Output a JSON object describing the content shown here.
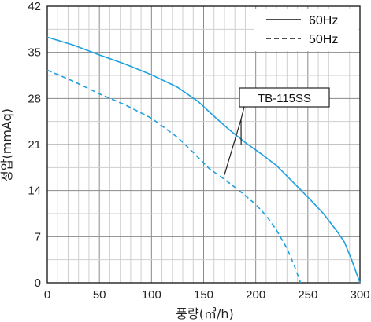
{
  "chart_data": {
    "type": "line",
    "xlabel": "풍량(㎥/h)",
    "ylabel": "정압(mmAq)",
    "xlim": [
      0,
      300
    ],
    "ylim": [
      0,
      42
    ],
    "x_ticks": [
      "0",
      "50",
      "100",
      "150",
      "200",
      "250",
      "300"
    ],
    "y_ticks": [
      "0",
      "7",
      "14",
      "21",
      "28",
      "35",
      "42"
    ],
    "x_tick_values": [
      0,
      50,
      100,
      150,
      200,
      250,
      300
    ],
    "y_tick_values": [
      0,
      7,
      14,
      21,
      28,
      35,
      42
    ],
    "x_minor_step": 10,
    "y_minor_step": 3.5,
    "grid": true,
    "legend_position": "top-right",
    "series": [
      {
        "name": "60Hz",
        "line_style": "solid",
        "color": "#1ea0e0",
        "points": [
          [
            0,
            37.3
          ],
          [
            25,
            36.1
          ],
          [
            50,
            34.6
          ],
          [
            75,
            33.2
          ],
          [
            100,
            31.6
          ],
          [
            125,
            29.7
          ],
          [
            145,
            27.5
          ],
          [
            160,
            25.3
          ],
          [
            175,
            23.2
          ],
          [
            190,
            21.3
          ],
          [
            205,
            19.6
          ],
          [
            220,
            17.8
          ],
          [
            235,
            15.4
          ],
          [
            250,
            13.0
          ],
          [
            265,
            10.5
          ],
          [
            278,
            7.8
          ],
          [
            285,
            6.2
          ],
          [
            292,
            3.5
          ],
          [
            300,
            0.0
          ]
        ]
      },
      {
        "name": "50Hz",
        "line_style": "dashed",
        "color": "#1ea0e0",
        "points": [
          [
            0,
            32.3
          ],
          [
            25,
            30.6
          ],
          [
            50,
            28.7
          ],
          [
            75,
            27.0
          ],
          [
            100,
            25.0
          ],
          [
            125,
            22.1
          ],
          [
            140,
            19.8
          ],
          [
            155,
            17.4
          ],
          [
            170,
            15.7
          ],
          [
            185,
            13.9
          ],
          [
            200,
            11.9
          ],
          [
            210,
            10.2
          ],
          [
            220,
            8.0
          ],
          [
            230,
            5.2
          ],
          [
            237,
            2.6
          ],
          [
            243,
            0.0
          ]
        ]
      }
    ],
    "annotation": {
      "text": "TB-115SS",
      "points_to": [
        [
          170,
          16.4
        ],
        [
          186,
          21.0
        ]
      ]
    }
  }
}
